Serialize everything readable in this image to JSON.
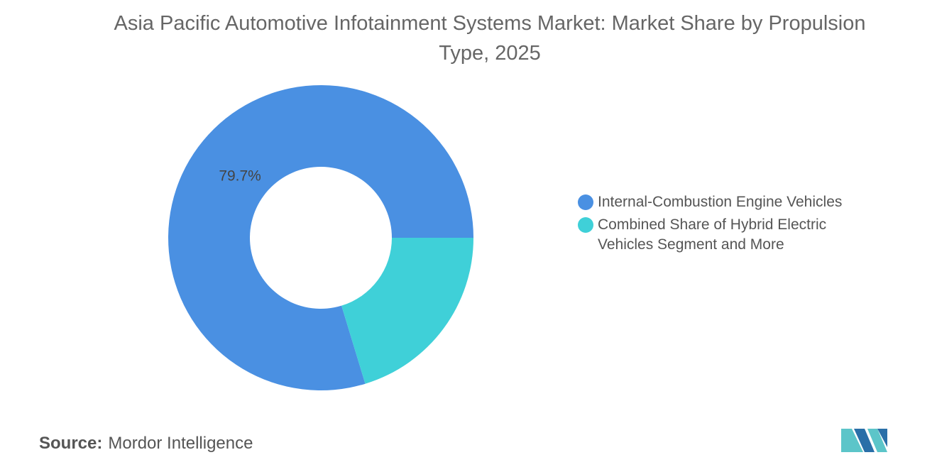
{
  "chart_data": {
    "type": "donut",
    "title": "Asia Pacific Automotive Infotainment Systems Market: Market Share by Propulsion Type, 2025",
    "categories": [
      "Internal-Combustion Engine Vehicles",
      "Combined Share of Hybrid Electric Vehicles Segment and More"
    ],
    "values": [
      79.7,
      20.3
    ],
    "value_labels": [
      "79.7%",
      null
    ],
    "colors": [
      "#4a90e2",
      "#3fd0d8"
    ],
    "legend": "right",
    "source_label": "Source:",
    "source": "Mordor Intelligence"
  }
}
